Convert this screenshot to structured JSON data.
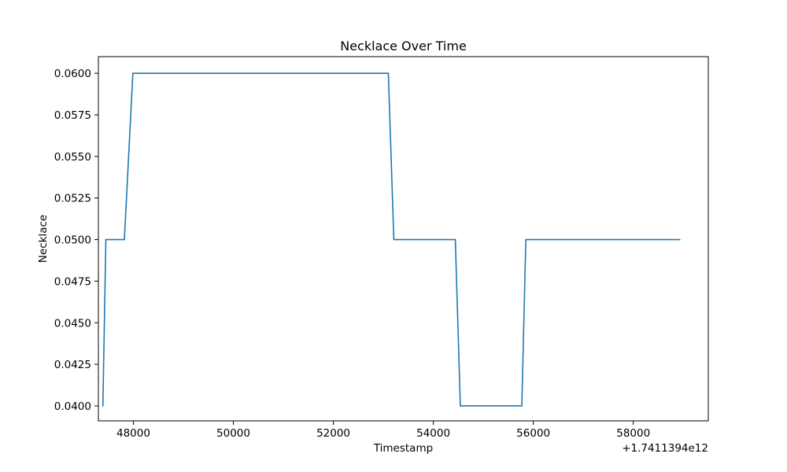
{
  "chart_data": {
    "type": "line",
    "title": "Necklace Over Time",
    "xlabel": "Timestamp",
    "ylabel": "Necklace",
    "x_offset_label": "+1.7411394e12",
    "x_offset": 1741139400000,
    "xlim": [
      47300,
      59500
    ],
    "ylim": [
      0.0391,
      0.061
    ],
    "x_ticks": [
      48000,
      50000,
      52000,
      54000,
      56000,
      58000
    ],
    "x_tick_labels": [
      "48000",
      "50000",
      "52000",
      "54000",
      "56000",
      "58000"
    ],
    "y_ticks": [
      0.04,
      0.0425,
      0.045,
      0.0475,
      0.05,
      0.0525,
      0.055,
      0.0575,
      0.06
    ],
    "y_tick_labels": [
      "0.0400",
      "0.0425",
      "0.0450",
      "0.0475",
      "0.0500",
      "0.0525",
      "0.0550",
      "0.0575",
      "0.0600"
    ],
    "grid": false,
    "series": [
      {
        "color": "#1f77b4",
        "x": [
          47390,
          47450,
          47820,
          47990,
          53100,
          53210,
          54440,
          54540,
          55770,
          55850,
          58930
        ],
        "y": [
          0.04,
          0.05,
          0.05,
          0.06,
          0.06,
          0.05,
          0.05,
          0.04,
          0.04,
          0.05,
          0.05
        ]
      }
    ]
  }
}
